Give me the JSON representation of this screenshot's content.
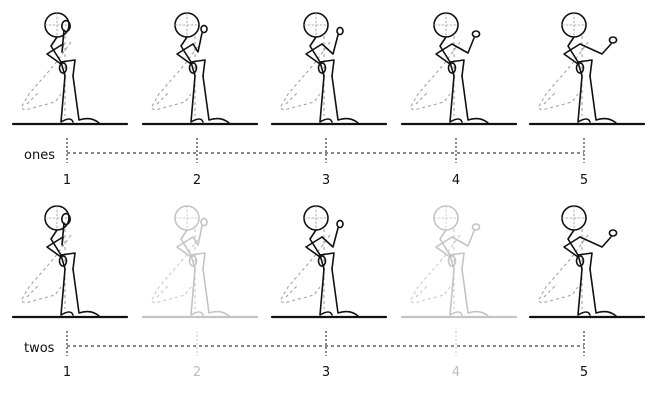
{
  "rows": [
    {
      "label": "ones",
      "frames": [
        {
          "number": "1",
          "arm_pose": 0,
          "faded": false
        },
        {
          "number": "2",
          "arm_pose": 1,
          "faded": false
        },
        {
          "number": "3",
          "arm_pose": 2,
          "faded": false
        },
        {
          "number": "4",
          "arm_pose": 3,
          "faded": false
        },
        {
          "number": "5",
          "arm_pose": 4,
          "faded": false
        }
      ]
    },
    {
      "label": "twos",
      "frames": [
        {
          "number": "1",
          "arm_pose": 0,
          "faded": false
        },
        {
          "number": "2",
          "arm_pose": 1,
          "faded": true
        },
        {
          "number": "3",
          "arm_pose": 2,
          "faded": false
        },
        {
          "number": "4",
          "arm_pose": 3,
          "faded": true
        },
        {
          "number": "5",
          "arm_pose": 4,
          "faded": false
        }
      ]
    }
  ],
  "colors": {
    "ink": "#111111",
    "faded_ink": "#c4c4c4",
    "ghost_dash": "#9a9a9a",
    "faded_number": "#bdbdbd"
  }
}
